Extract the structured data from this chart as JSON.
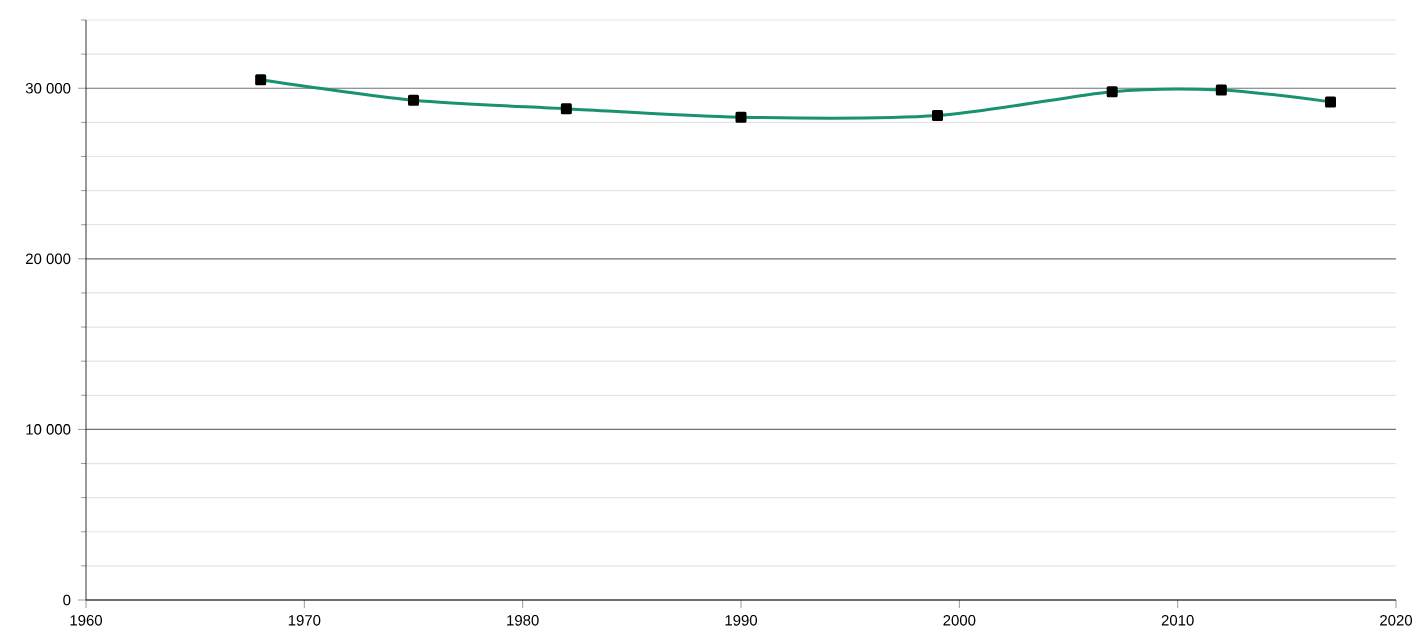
{
  "chart_data": {
    "type": "line",
    "x": [
      1968,
      1975,
      1982,
      1990,
      1999,
      2007,
      2012,
      2017
    ],
    "series": [
      {
        "color": "#1a9170",
        "values": [
          30500,
          29300,
          28800,
          28300,
          28400,
          29800,
          29900,
          29200
        ]
      }
    ],
    "xlim": [
      1960,
      2020
    ],
    "xticks": [
      1960,
      1970,
      1980,
      1990,
      2000,
      2010,
      2020
    ],
    "ylim": [
      0,
      34000
    ],
    "yticks": [
      {
        "value": 0,
        "label": "0"
      },
      {
        "value": 2000,
        "label": null
      },
      {
        "value": 4000,
        "label": null
      },
      {
        "value": 6000,
        "label": null
      },
      {
        "value": 8000,
        "label": null
      },
      {
        "value": 10000,
        "label": "10 000"
      },
      {
        "value": 12000,
        "label": null
      },
      {
        "value": 14000,
        "label": null
      },
      {
        "value": 16000,
        "label": null
      },
      {
        "value": 18000,
        "label": null
      },
      {
        "value": 20000,
        "label": "20 000"
      },
      {
        "value": 22000,
        "label": null
      },
      {
        "value": 24000,
        "label": null
      },
      {
        "value": 26000,
        "label": null
      },
      {
        "value": 28000,
        "label": null
      },
      {
        "value": 30000,
        "label": "30 000"
      },
      {
        "value": 32000,
        "label": null
      },
      {
        "value": 34000,
        "label": null
      }
    ],
    "grid": "y",
    "marker": "square",
    "line_style": "solid"
  }
}
